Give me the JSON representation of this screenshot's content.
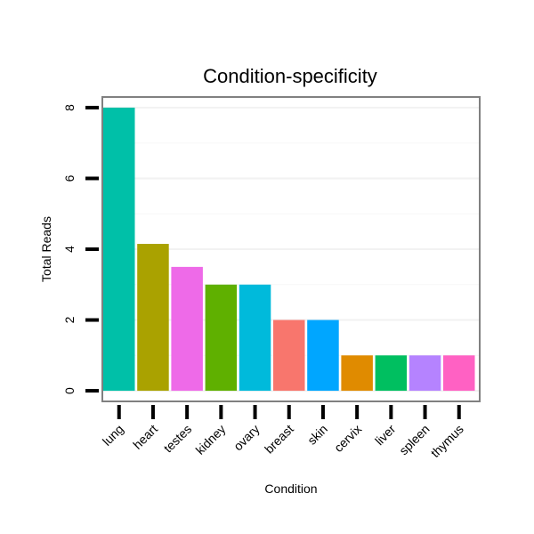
{
  "chart_data": {
    "type": "bar",
    "title": "Condition-specificity",
    "xlabel": "Condition",
    "ylabel": "Total Reads",
    "categories": [
      "lung",
      "heart",
      "testes",
      "kidney",
      "ovary",
      "breast",
      "skin",
      "cervix",
      "liver",
      "spleen",
      "thymus"
    ],
    "values": [
      8,
      4.15,
      3.5,
      3,
      3,
      2,
      2,
      1,
      1,
      1,
      1
    ],
    "colors": [
      "#00C0A8",
      "#AAA200",
      "#EE6AE8",
      "#5FB000",
      "#00BADB",
      "#F8766D",
      "#00A6FF",
      "#E08B00",
      "#00BF60",
      "#B583FF",
      "#FF61C3"
    ],
    "ylim": [
      -0.3,
      8.3
    ],
    "yticks": [
      0,
      2,
      4,
      6,
      8
    ],
    "grid": true,
    "legend": "none"
  }
}
